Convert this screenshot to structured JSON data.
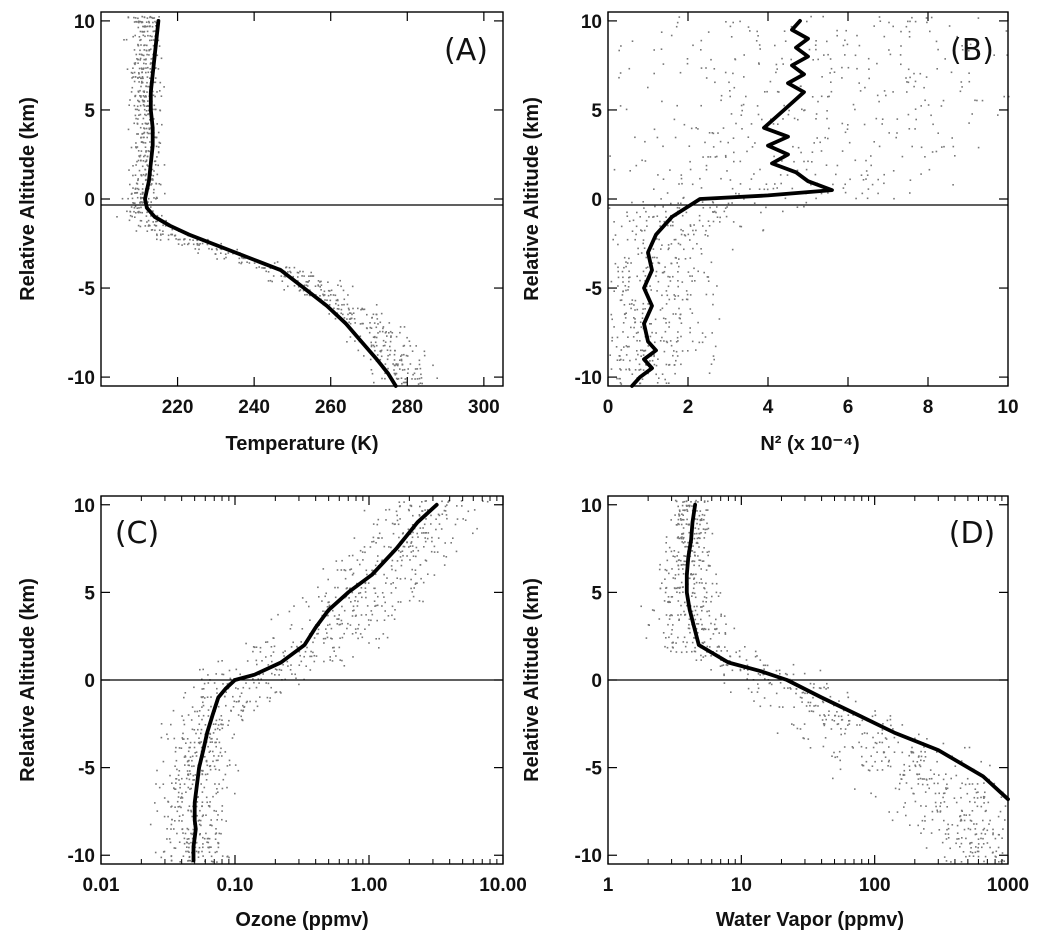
{
  "chart_data": [
    {
      "type": "scatter",
      "panel_label": "(A)",
      "xlabel": "Temperature (K)",
      "ylabel": "Relative Altitude (km)",
      "xscale": "linear",
      "xlim": [
        200,
        305
      ],
      "ylim": [
        -10.5,
        10.5
      ],
      "xticks": [
        {
          "v": 220,
          "label": "220"
        },
        {
          "v": 240,
          "label": "240"
        },
        {
          "v": 260,
          "label": "260"
        },
        {
          "v": 280,
          "label": "280"
        },
        {
          "v": 300,
          "label": "300"
        }
      ],
      "yticks": [
        {
          "v": 10,
          "label": "10"
        },
        {
          "v": 5,
          "label": "5"
        },
        {
          "v": 0,
          "label": "0"
        },
        {
          "v": -5,
          "label": "-5"
        },
        {
          "v": -10,
          "label": "-10"
        }
      ],
      "reference_line_y": 0,
      "series": [
        {
          "kind": "mean-profile",
          "x": [
            215,
            214.5,
            214,
            213.5,
            213,
            213,
            213.5,
            213.5,
            213,
            212.5,
            212,
            211.5,
            212,
            214,
            218,
            223,
            229,
            235,
            241,
            247,
            253,
            259,
            264,
            268,
            272,
            275,
            277
          ],
          "y": [
            10,
            9,
            8,
            7,
            6,
            5,
            4,
            3,
            2,
            1,
            0.5,
            0,
            -0.5,
            -1,
            -1.5,
            -2,
            -2.5,
            -3,
            -3.5,
            -4,
            -5,
            -6,
            -7,
            -8,
            -9,
            -9.8,
            -10.5
          ]
        },
        {
          "kind": "individual-points",
          "profile_x": [
            211,
            211,
            212,
            211,
            210,
            210,
            218,
            232,
            248,
            264,
            274,
            280
          ],
          "profile_y": [
            10,
            6,
            3,
            0,
            -0.5,
            -1,
            -2,
            -3,
            -4,
            -6,
            -8,
            -10
          ],
          "spread": [
            6,
            6,
            6,
            7,
            8,
            9,
            9,
            10,
            11,
            12,
            13,
            13
          ]
        }
      ]
    },
    {
      "type": "scatter",
      "panel_label": "(B)",
      "xlabel": "N² (x 10⁻⁴)",
      "ylabel": "Relative Altitude (km)",
      "xscale": "linear",
      "xlim": [
        0,
        10
      ],
      "ylim": [
        -10.5,
        10.5
      ],
      "xticks": [
        {
          "v": 0,
          "label": "0"
        },
        {
          "v": 2,
          "label": "2"
        },
        {
          "v": 4,
          "label": "4"
        },
        {
          "v": 6,
          "label": "6"
        },
        {
          "v": 8,
          "label": "8"
        },
        {
          "v": 10,
          "label": "10"
        }
      ],
      "yticks": [
        {
          "v": 10,
          "label": "10"
        },
        {
          "v": 5,
          "label": "5"
        },
        {
          "v": 0,
          "label": "0"
        },
        {
          "v": -5,
          "label": "-5"
        },
        {
          "v": -10,
          "label": "-10"
        }
      ],
      "reference_line_y": 0,
      "series": [
        {
          "kind": "mean-profile",
          "x": [
            4.8,
            4.6,
            5.0,
            4.7,
            5.0,
            4.6,
            4.9,
            4.5,
            4.9,
            4.4,
            3.9,
            4.5,
            4.0,
            4.5,
            4.1,
            4.7,
            5.0,
            5.6,
            4.0,
            2.3,
            1.6,
            1.2,
            1.0,
            1.1,
            0.9,
            1.1,
            0.9,
            1.0,
            1.2,
            0.9,
            1.1,
            0.8,
            0.6
          ],
          "y": [
            10,
            9.5,
            9,
            8.5,
            8,
            7.5,
            7,
            6.5,
            6,
            5,
            4,
            3.5,
            3,
            2.5,
            2,
            1.5,
            1,
            0.5,
            0.2,
            0,
            -1,
            -2,
            -3,
            -4,
            -5,
            -6,
            -7,
            -8,
            -8.5,
            -9,
            -9.5,
            -10,
            -10.5
          ],
          "step": 0.25
        },
        {
          "kind": "individual-points",
          "profile_x": [
            5.5,
            5.5,
            5.0,
            4.8,
            4.8,
            2.0,
            1.3,
            1.1,
            1.0
          ],
          "profile_y": [
            10,
            6,
            3,
            1,
            0.3,
            -0.2,
            -2,
            -6,
            -10
          ],
          "spread": [
            8.5,
            8.5,
            7.5,
            7.5,
            5,
            3.5,
            2.5,
            2.2,
            2.2
          ]
        }
      ]
    },
    {
      "type": "scatter",
      "panel_label": "(C)",
      "xlabel": "Ozone (ppmv)",
      "ylabel": "Relative Altitude (km)",
      "xscale": "log",
      "xlim": [
        0.01,
        10
      ],
      "ylim": [
        -10.5,
        10.5
      ],
      "xticks": [
        {
          "v": 0.01,
          "label": "0.01"
        },
        {
          "v": 0.1,
          "label": "0.10"
        },
        {
          "v": 1,
          "label": "1.00"
        },
        {
          "v": 10,
          "label": "10.00"
        }
      ],
      "yticks": [
        {
          "v": 10,
          "label": "10"
        },
        {
          "v": 5,
          "label": "5"
        },
        {
          "v": 0,
          "label": "0"
        },
        {
          "v": -5,
          "label": "-5"
        },
        {
          "v": -10,
          "label": "-10"
        }
      ],
      "reference_line_y": 0,
      "series": [
        {
          "kind": "mean-profile",
          "x": [
            3.2,
            2.3,
            1.6,
            1.05,
            0.7,
            0.5,
            0.4,
            0.33,
            0.22,
            0.14,
            0.1,
            0.085,
            0.075,
            0.068,
            0.062,
            0.058,
            0.054,
            0.052,
            0.05,
            0.05,
            0.051,
            0.05,
            0.049,
            0.049
          ],
          "y": [
            10,
            9,
            7.5,
            6,
            5,
            4,
            3,
            2,
            1,
            0.3,
            0,
            -0.5,
            -1,
            -2,
            -3,
            -4,
            -5,
            -6,
            -7,
            -8,
            -8.5,
            -9,
            -9.5,
            -10.3
          ],
          "step": 0.3
        },
        {
          "kind": "individual-points",
          "profile_x": [
            3.0,
            1.5,
            0.7,
            0.35,
            0.15,
            0.08,
            0.055,
            0.05,
            0.05
          ],
          "profile_y": [
            10,
            7,
            4,
            2,
            0.5,
            -1,
            -3,
            -6,
            -10
          ],
          "spread": [
            0.55,
            0.6,
            0.65,
            0.7,
            0.7,
            0.5,
            0.4,
            0.38,
            0.35
          ]
        }
      ]
    },
    {
      "type": "scatter",
      "panel_label": "(D)",
      "xlabel": "Water Vapor (ppmv)",
      "ylabel": "Relative Altitude (km)",
      "xscale": "log",
      "xlim": [
        1,
        1000
      ],
      "ylim": [
        -10.5,
        10.5
      ],
      "xticks": [
        {
          "v": 1,
          "label": "1"
        },
        {
          "v": 10,
          "label": "10"
        },
        {
          "v": 100,
          "label": "100"
        },
        {
          "v": 1000,
          "label": "1000"
        }
      ],
      "yticks": [
        {
          "v": 10,
          "label": "10"
        },
        {
          "v": 5,
          "label": "5"
        },
        {
          "v": 0,
          "label": "0"
        },
        {
          "v": -5,
          "label": "-5"
        },
        {
          "v": -10,
          "label": "-10"
        }
      ],
      "reference_line_y": 0,
      "series": [
        {
          "kind": "mean-profile",
          "x": [
            4.5,
            4.3,
            4.2,
            4.0,
            3.9,
            3.9,
            4.1,
            4.8,
            8,
            14,
            22,
            40,
            75,
            140,
            300,
            650,
            1000
          ],
          "y": [
            10,
            9,
            8,
            7,
            6,
            5,
            4,
            2,
            1,
            0.5,
            0,
            -1,
            -2,
            -3,
            -4,
            -5.5,
            -6.8
          ],
          "step": 0.3
        },
        {
          "kind": "individual-points",
          "profile_x": [
            4.2,
            3.8,
            3.6,
            4.5,
            12,
            30,
            80,
            180,
            400,
            700
          ],
          "profile_y": [
            10,
            6,
            4,
            2,
            0.5,
            -1,
            -3,
            -5,
            -7,
            -10
          ],
          "spread": [
            0.2,
            0.3,
            0.4,
            0.4,
            0.6,
            0.7,
            0.8,
            0.8,
            0.8,
            0.7
          ]
        }
      ]
    }
  ]
}
